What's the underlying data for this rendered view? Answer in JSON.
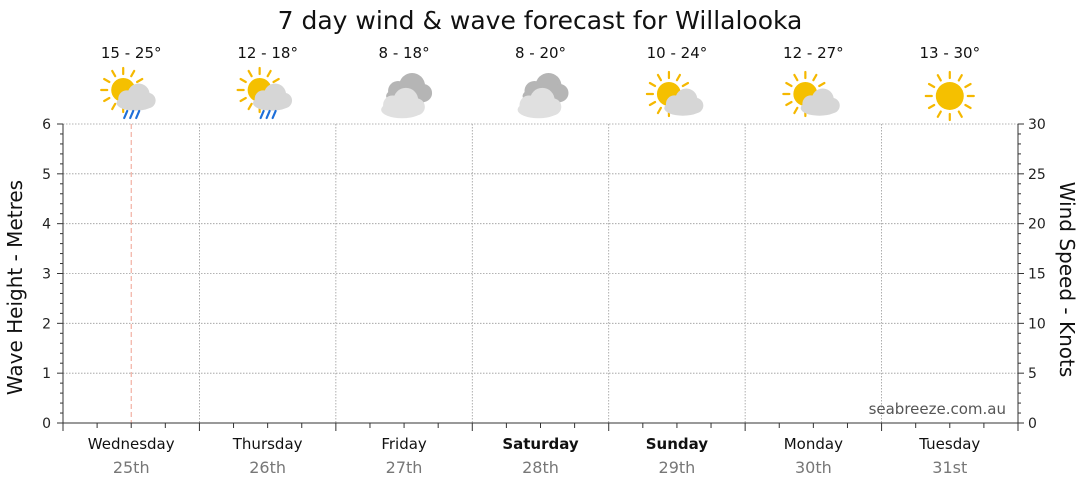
{
  "chart_data": {
    "type": "line",
    "title": "7 day wind & wave forecast for Willalooka",
    "ylabel_left": "Wave Height - Metres",
    "ylabel_right": "Wind Speed - Knots",
    "ylim_left": [
      0,
      6
    ],
    "ylim_right": [
      0,
      30
    ],
    "yticks_left": [
      "0",
      "1",
      "2",
      "3",
      "4",
      "5",
      "6"
    ],
    "yticks_right": [
      "0",
      "5",
      "10",
      "15",
      "20",
      "25",
      "30"
    ],
    "grid": true,
    "watermark": "seabreeze.com.au",
    "days": [
      {
        "name": "Wednesday",
        "date": "25th",
        "temp": "15 - 25°",
        "icon": "sun-cloud-rain-icon",
        "bold": false
      },
      {
        "name": "Thursday",
        "date": "26th",
        "temp": "12 - 18°",
        "icon": "sun-cloud-rain-icon",
        "bold": false
      },
      {
        "name": "Friday",
        "date": "27th",
        "temp": "8 - 18°",
        "icon": "cloudy-icon",
        "bold": false
      },
      {
        "name": "Saturday",
        "date": "28th",
        "temp": "8 - 20°",
        "icon": "cloudy-icon",
        "bold": true
      },
      {
        "name": "Sunday",
        "date": "29th",
        "temp": "10 - 24°",
        "icon": "partly-cloudy-icon",
        "bold": true
      },
      {
        "name": "Monday",
        "date": "30th",
        "temp": "12 - 27°",
        "icon": "partly-cloudy-icon",
        "bold": false
      },
      {
        "name": "Tuesday",
        "date": "31st",
        "temp": "13 - 30°",
        "icon": "sunny-icon",
        "bold": false
      }
    ],
    "current_time_day_fraction": 0.5,
    "series": []
  },
  "colors": {
    "grid": "#9a9a9a",
    "axis": "#333333",
    "now_line": "#f0a090",
    "sun": "#f5c000",
    "sun_rays": "#f5b800",
    "cloud_light": "#d6d6d6",
    "cloud_dark": "#b5b5b5",
    "rain": "#1e6fd9",
    "date_text": "#777777",
    "watermark": "#555555"
  }
}
